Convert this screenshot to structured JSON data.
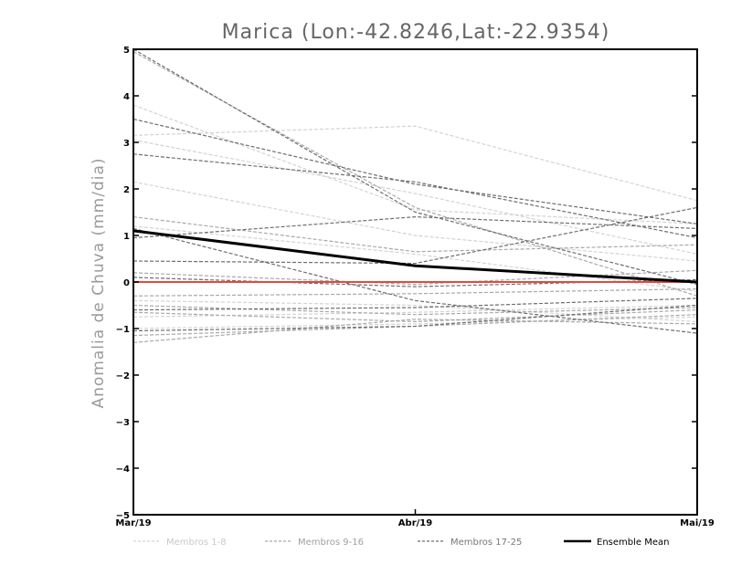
{
  "chart_data": {
    "type": "line",
    "title": "Marica (Lon:-42.8246,Lat:-22.9354)",
    "xlabel": "",
    "ylabel": "Anomalia de Chuva (mm/dia)",
    "categories": [
      "Mar/19",
      "Abr/19",
      "Mai/19"
    ],
    "ylim": [
      -5,
      5
    ],
    "yticks": [
      -5,
      -4,
      -3,
      -2,
      -1,
      0,
      1,
      2,
      3,
      4,
      5
    ],
    "series": [
      {
        "name": "Membros 1-8",
        "group": 0,
        "values": [
          3.15,
          3.35,
          1.75
        ]
      },
      {
        "name": "Membros 1-8",
        "group": 0,
        "values": [
          3.8,
          1.55,
          1.25
        ]
      },
      {
        "name": "Membros 1-8",
        "group": 0,
        "values": [
          3.05,
          1.9,
          0.6
        ]
      },
      {
        "name": "Membros 1-8",
        "group": 0,
        "values": [
          2.15,
          1.0,
          0.45
        ]
      },
      {
        "name": "Membros 1-8",
        "group": 0,
        "values": [
          1.2,
          0.6,
          -0.2
        ]
      },
      {
        "name": "Membros 1-8",
        "group": 0,
        "values": [
          -0.4,
          -0.5,
          -0.85
        ]
      },
      {
        "name": "Membros 1-8",
        "group": 0,
        "values": [
          -0.75,
          -0.65,
          -0.5
        ]
      },
      {
        "name": "Membros 1-8",
        "group": 0,
        "values": [
          -1.0,
          -0.9,
          -0.75
        ]
      },
      {
        "name": "Membros 9-16",
        "group": 1,
        "values": [
          4.95,
          1.6,
          -0.3
        ]
      },
      {
        "name": "Membros 9-16",
        "group": 1,
        "values": [
          1.4,
          0.65,
          0.8
        ]
      },
      {
        "name": "Membros 9-16",
        "group": 1,
        "values": [
          0.2,
          -0.05,
          0.25
        ]
      },
      {
        "name": "Membros 9-16",
        "group": 1,
        "values": [
          -0.3,
          -0.25,
          -0.15
        ]
      },
      {
        "name": "Membros 9-16",
        "group": 1,
        "values": [
          -0.5,
          -0.7,
          -0.55
        ]
      },
      {
        "name": "Membros 9-16",
        "group": 1,
        "values": [
          -0.65,
          -0.85,
          -0.6
        ]
      },
      {
        "name": "Membros 9-16",
        "group": 1,
        "values": [
          -1.15,
          -0.95,
          -0.7
        ]
      },
      {
        "name": "Membros 9-16",
        "group": 1,
        "values": [
          -1.3,
          -0.8,
          -0.9
        ]
      },
      {
        "name": "Membros 17-25",
        "group": 2,
        "values": [
          5.0,
          1.5,
          -0.05
        ]
      },
      {
        "name": "Membros 17-25",
        "group": 2,
        "values": [
          3.5,
          2.1,
          1.25
        ]
      },
      {
        "name": "Membros 17-25",
        "group": 2,
        "values": [
          2.75,
          2.15,
          0.95
        ]
      },
      {
        "name": "Membros 17-25",
        "group": 2,
        "values": [
          0.95,
          1.4,
          1.15
        ]
      },
      {
        "name": "Membros 17-25",
        "group": 2,
        "values": [
          1.15,
          -0.4,
          -1.1
        ]
      },
      {
        "name": "Membros 17-25",
        "group": 2,
        "values": [
          0.45,
          0.4,
          1.6
        ]
      },
      {
        "name": "Membros 17-25",
        "group": 2,
        "values": [
          0.1,
          -0.1,
          0.05
        ]
      },
      {
        "name": "Membros 17-25",
        "group": 2,
        "values": [
          -0.6,
          -0.55,
          -0.35
        ]
      },
      {
        "name": "Membros 17-25",
        "group": 2,
        "values": [
          -1.05,
          -0.95,
          -0.5
        ]
      }
    ],
    "ensemble_mean": {
      "name": "Ensemble Mean",
      "values": [
        1.1,
        0.35,
        0.0
      ]
    },
    "zero_line": {
      "value": 0
    },
    "legend": [
      {
        "label": "Membros 1-8",
        "color": "#d3d3d3"
      },
      {
        "label": "Membros 9-16",
        "color": "#a8a8a8"
      },
      {
        "label": "Membros 17-25",
        "color": "#6e6e6e"
      },
      {
        "label": "Ensemble Mean",
        "color": "#000000"
      }
    ],
    "legend_position": "bottom",
    "colors": {
      "group_0": "#d3d3d3",
      "group_1": "#a8a8a8",
      "group_2": "#6e6e6e",
      "mean": "#000000",
      "zero": "#e04a3f"
    }
  }
}
